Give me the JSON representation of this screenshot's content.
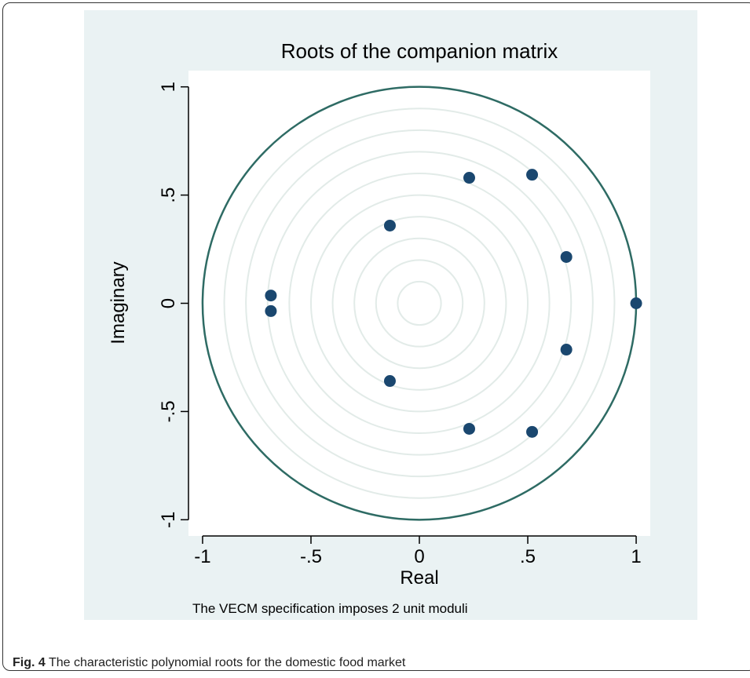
{
  "chart_data": {
    "type": "scatter",
    "title": "Roots of the companion matrix",
    "x_label": "Real",
    "y_label": "Imaginary",
    "note": "The VECM specification imposes 2 unit moduli",
    "x": [
      -0.685,
      -0.685,
      -0.136,
      -0.136,
      0.23,
      0.23,
      0.52,
      0.52,
      0.678,
      0.678,
      1
    ],
    "y": [
      0.036,
      -0.036,
      0.359,
      -0.359,
      0.58,
      -0.58,
      0.594,
      -0.594,
      0.214,
      -0.214,
      0
    ],
    "color": "#1a476f",
    "xlim": [
      -1.065,
      1.065
    ],
    "ylim": [
      -1.075,
      1.075
    ],
    "xticks": [
      -1,
      {
        "value": -0.5,
        "label": "-.5"
      },
      0,
      {
        "value": 0.5,
        "label": ".5"
      },
      1
    ],
    "yticks": [
      -1,
      {
        "value": -0.5,
        "label": "-.5"
      },
      0,
      {
        "value": 0.5,
        "label": ".5"
      },
      1
    ],
    "unit_circle": {
      "radius": 1,
      "color": "#2e6b64"
    },
    "grid_circles": [
      0.1,
      0.2,
      0.3,
      0.4,
      0.5,
      0.6,
      0.7,
      0.8,
      0.9
    ],
    "grid_color": "#e2ebe8"
  },
  "caption": {
    "label": "Fig. 4",
    "text": "The characteristic polynomial roots for the domestic food market"
  }
}
